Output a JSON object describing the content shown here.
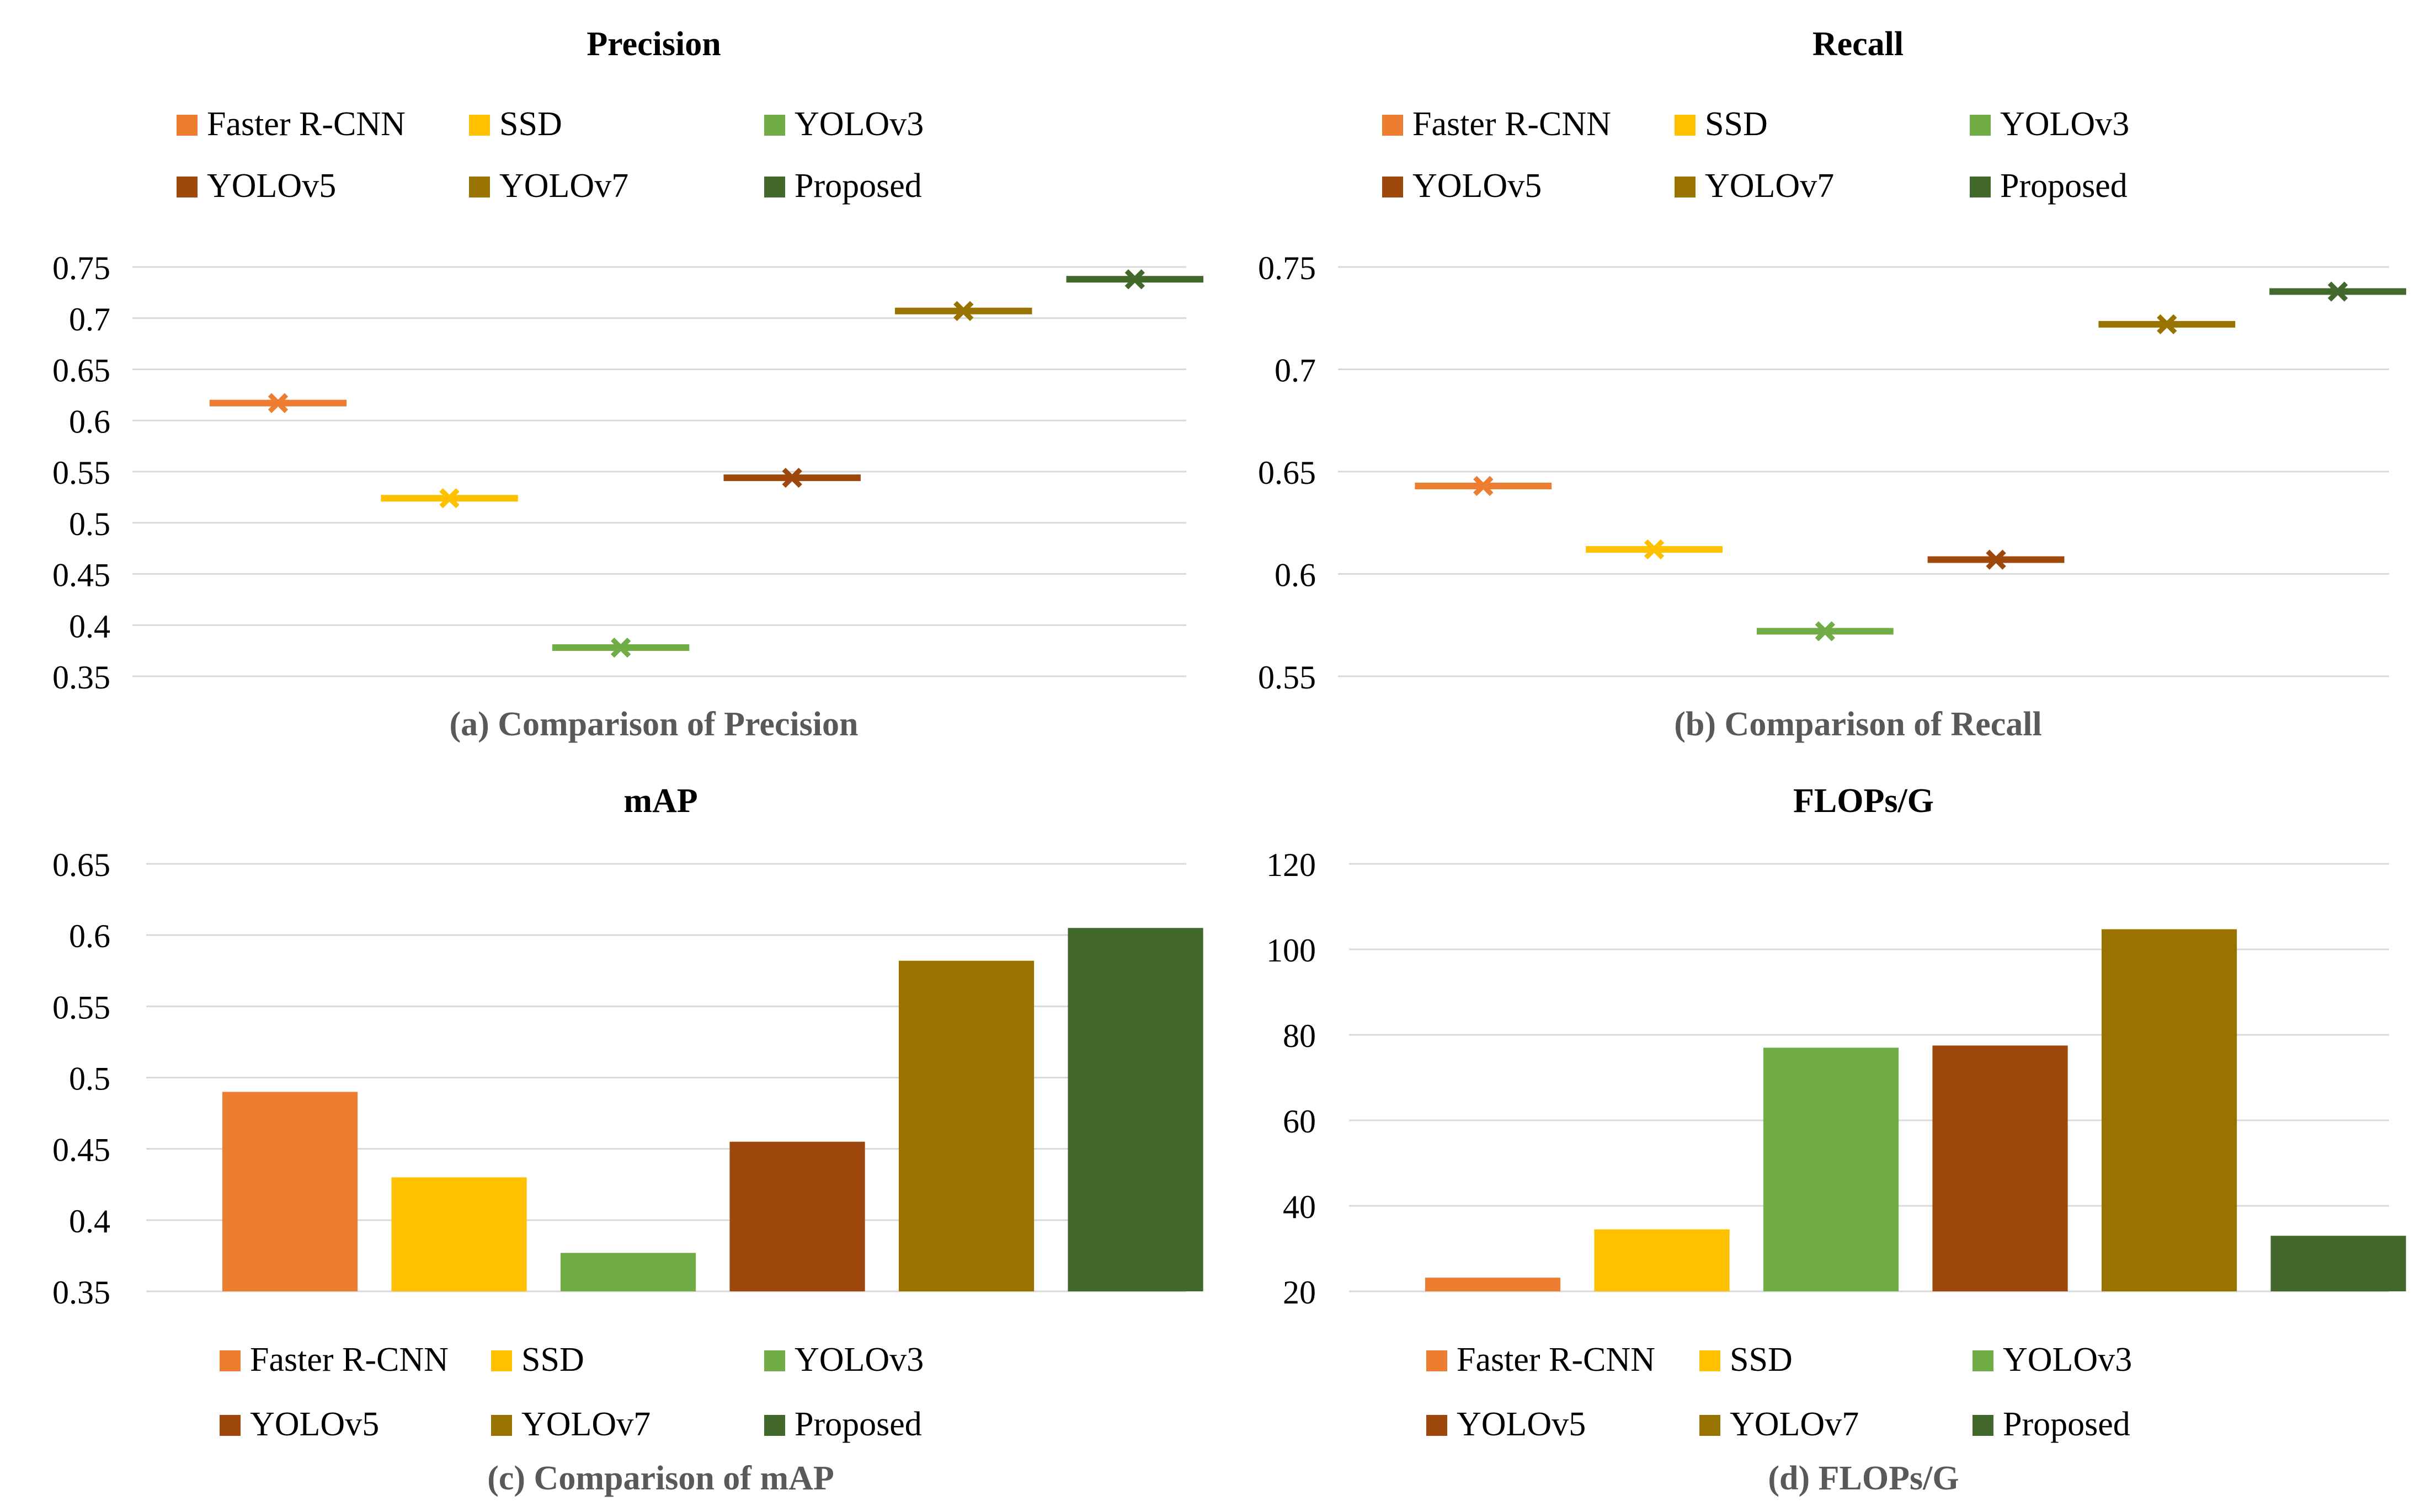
{
  "colors": {
    "Faster R-CNN": "#ED7D31",
    "SSD": "#FFC000",
    "YOLOv3": "#70AD47",
    "YOLOv5": "#9E480E",
    "YOLOv7": "#997300",
    "Proposed": "#43682B",
    "grid": "#D9D9D9",
    "text": "#000000",
    "caption": "#595959"
  },
  "chart_data": [
    {
      "id": "a",
      "type": "scatter",
      "marker": "x-with-dash",
      "title": "Precision",
      "caption": "(a) Comparison of Precision",
      "categories": [
        "Faster R-CNN",
        "SSD",
        "YOLOv3",
        "YOLOv5",
        "YOLOv7",
        "Proposed"
      ],
      "values": [
        0.617,
        0.524,
        0.378,
        0.544,
        0.707,
        0.738
      ],
      "ylim": [
        0.35,
        0.75
      ],
      "yticks": [
        0.35,
        0.4,
        0.45,
        0.5,
        0.55,
        0.6,
        0.65,
        0.7,
        0.75
      ],
      "ytick_labels": [
        "0.35",
        "0.4",
        "0.45",
        "0.5",
        "0.55",
        "0.6",
        "0.65",
        "0.7",
        "0.75"
      ],
      "legend_position": "top",
      "grid": true
    },
    {
      "id": "b",
      "type": "scatter",
      "marker": "x-with-dash",
      "title": "Recall",
      "caption": "(b) Comparison of Recall",
      "categories": [
        "Faster R-CNN",
        "SSD",
        "YOLOv3",
        "YOLOv5",
        "YOLOv7",
        "Proposed"
      ],
      "values": [
        0.643,
        0.612,
        0.572,
        0.607,
        0.722,
        0.738
      ],
      "ylim": [
        0.55,
        0.75
      ],
      "yticks": [
        0.55,
        0.6,
        0.65,
        0.7,
        0.75
      ],
      "ytick_labels": [
        "0.55",
        "0.6",
        "0.65",
        "0.7",
        "0.75"
      ],
      "legend_position": "top",
      "grid": true
    },
    {
      "id": "c",
      "type": "bar",
      "title": "mAP",
      "caption": "(c) Comparison of mAP",
      "categories": [
        "Faster R-CNN",
        "SSD",
        "YOLOv3",
        "YOLOv5",
        "YOLOv7",
        "Proposed"
      ],
      "values": [
        0.49,
        0.43,
        0.377,
        0.455,
        0.582,
        0.605
      ],
      "ylim": [
        0.35,
        0.65
      ],
      "yticks": [
        0.35,
        0.4,
        0.45,
        0.5,
        0.55,
        0.6,
        0.65
      ],
      "ytick_labels": [
        "0.35",
        "0.4",
        "0.45",
        "0.5",
        "0.55",
        "0.6",
        "0.65"
      ],
      "legend_position": "bottom",
      "grid": true
    },
    {
      "id": "d",
      "type": "bar",
      "title": "FLOPs/G",
      "caption": "(d) FLOPs/G",
      "categories": [
        "Faster R-CNN",
        "SSD",
        "YOLOv3",
        "YOLOv5",
        "YOLOv7",
        "Proposed"
      ],
      "values": [
        23.2,
        34.5,
        77.0,
        77.5,
        104.7,
        33.0
      ],
      "ylim": [
        20,
        120
      ],
      "yticks": [
        20,
        40,
        60,
        80,
        100,
        120
      ],
      "ytick_labels": [
        "20",
        "40",
        "60",
        "80",
        "100",
        "120"
      ],
      "legend_position": "bottom",
      "grid": true
    }
  ]
}
